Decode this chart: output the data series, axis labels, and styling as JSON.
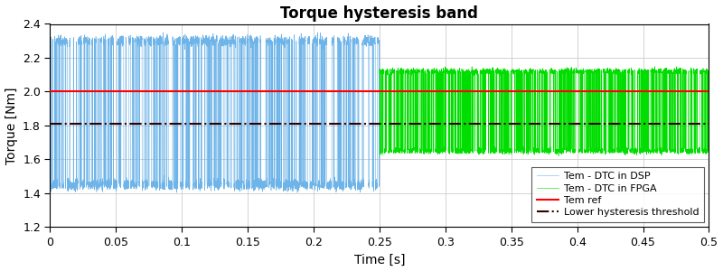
{
  "title": "Torque hysteresis band",
  "xlabel": "Time [s]",
  "ylabel": "Torque [Nm]",
  "xlim": [
    0,
    0.5
  ],
  "ylim": [
    1.2,
    2.4
  ],
  "yticks": [
    1.2,
    1.4,
    1.6,
    1.8,
    2.0,
    2.2,
    2.4
  ],
  "xticks": [
    0,
    0.05,
    0.1,
    0.15,
    0.2,
    0.25,
    0.3,
    0.35,
    0.4,
    0.45,
    0.5
  ],
  "tem_ref": 2.0,
  "lower_hysteresis": 1.81,
  "switch_time": 0.25,
  "dsp_upper": 2.3,
  "dsp_lower": 1.45,
  "dsp_mean": 1.9,
  "fpga_upper": 2.12,
  "fpga_lower": 1.65,
  "fpga_mean": 1.895,
  "color_dsp": "#6EB4E8",
  "color_fpga": "#00DD00",
  "color_ref": "#FF0000",
  "color_hysteresis": "#330000",
  "legend_labels": [
    "Tem - DTC in DSP",
    "Tem - DTC in FPGA",
    "Tem ref",
    "Lower hysteresis threshold"
  ],
  "background_color": "#FFFFFF",
  "grid_color": "#CCCCCC",
  "title_fontsize": 12,
  "label_fontsize": 10,
  "tick_fontsize": 9
}
